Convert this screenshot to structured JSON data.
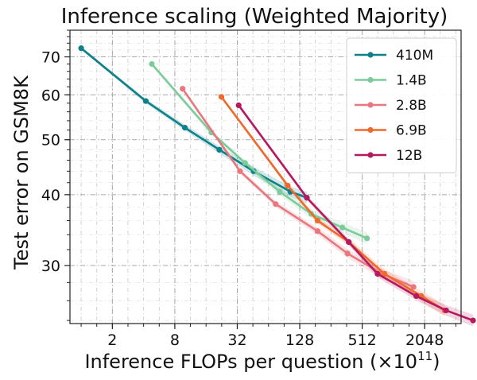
{
  "chart_data": {
    "type": "line",
    "title": "Inference scaling (Weighted Majority)",
    "xlabel": "Inference FLOPs per question (×10",
    "xlabel_exp": "11",
    "xlabel_close": ")",
    "ylabel": "Test error on GSM8K",
    "x_scale": "log2",
    "y_scale": "log",
    "xlim": [
      0.78,
      4600
    ],
    "ylim": [
      23.7,
      78
    ],
    "x_ticks": [
      2,
      8,
      32,
      128,
      512,
      2048
    ],
    "x_tick_labels": [
      "2",
      "8",
      "32",
      "128",
      "512",
      "2048"
    ],
    "y_ticks": [
      30,
      40,
      50,
      60,
      70
    ],
    "y_tick_labels": [
      "30",
      "40",
      "50",
      "60",
      "70"
    ],
    "grid": true,
    "legend_position": "top-right",
    "series": [
      {
        "name": "410M",
        "color": "#0d8088",
        "x": [
          1.0,
          4.2,
          10,
          21.5,
          46,
          104,
          150
        ],
        "y": [
          72.5,
          58.5,
          52.5,
          48,
          44,
          40.5,
          39.5
        ]
      },
      {
        "name": "1.4B",
        "color": "#7dcb9a",
        "x": [
          4.8,
          18,
          38,
          82,
          165,
          330,
          570
        ],
        "y": [
          68,
          51.5,
          45.5,
          40.5,
          37,
          35,
          33.5
        ]
      },
      {
        "name": "2.8B",
        "color": "#e8777e",
        "x": [
          9.5,
          34,
          75,
          190,
          370,
          800,
          1600
        ],
        "y": [
          61.5,
          44,
          38.5,
          34.5,
          31.5,
          29,
          27.5
        ]
      },
      {
        "name": "6.9B",
        "color": "#f0692c",
        "x": [
          22.5,
          98,
          190,
          380,
          840,
          1900,
          3200
        ],
        "y": [
          59.5,
          41.5,
          36,
          33,
          29,
          26.5,
          25
        ]
      },
      {
        "name": "12B",
        "color": "#b5195e",
        "x": [
          33,
          150,
          380,
          720,
          1700,
          3300,
          6000
        ],
        "y": [
          57.5,
          39.5,
          33,
          29,
          26.5,
          25,
          24
        ]
      }
    ]
  }
}
